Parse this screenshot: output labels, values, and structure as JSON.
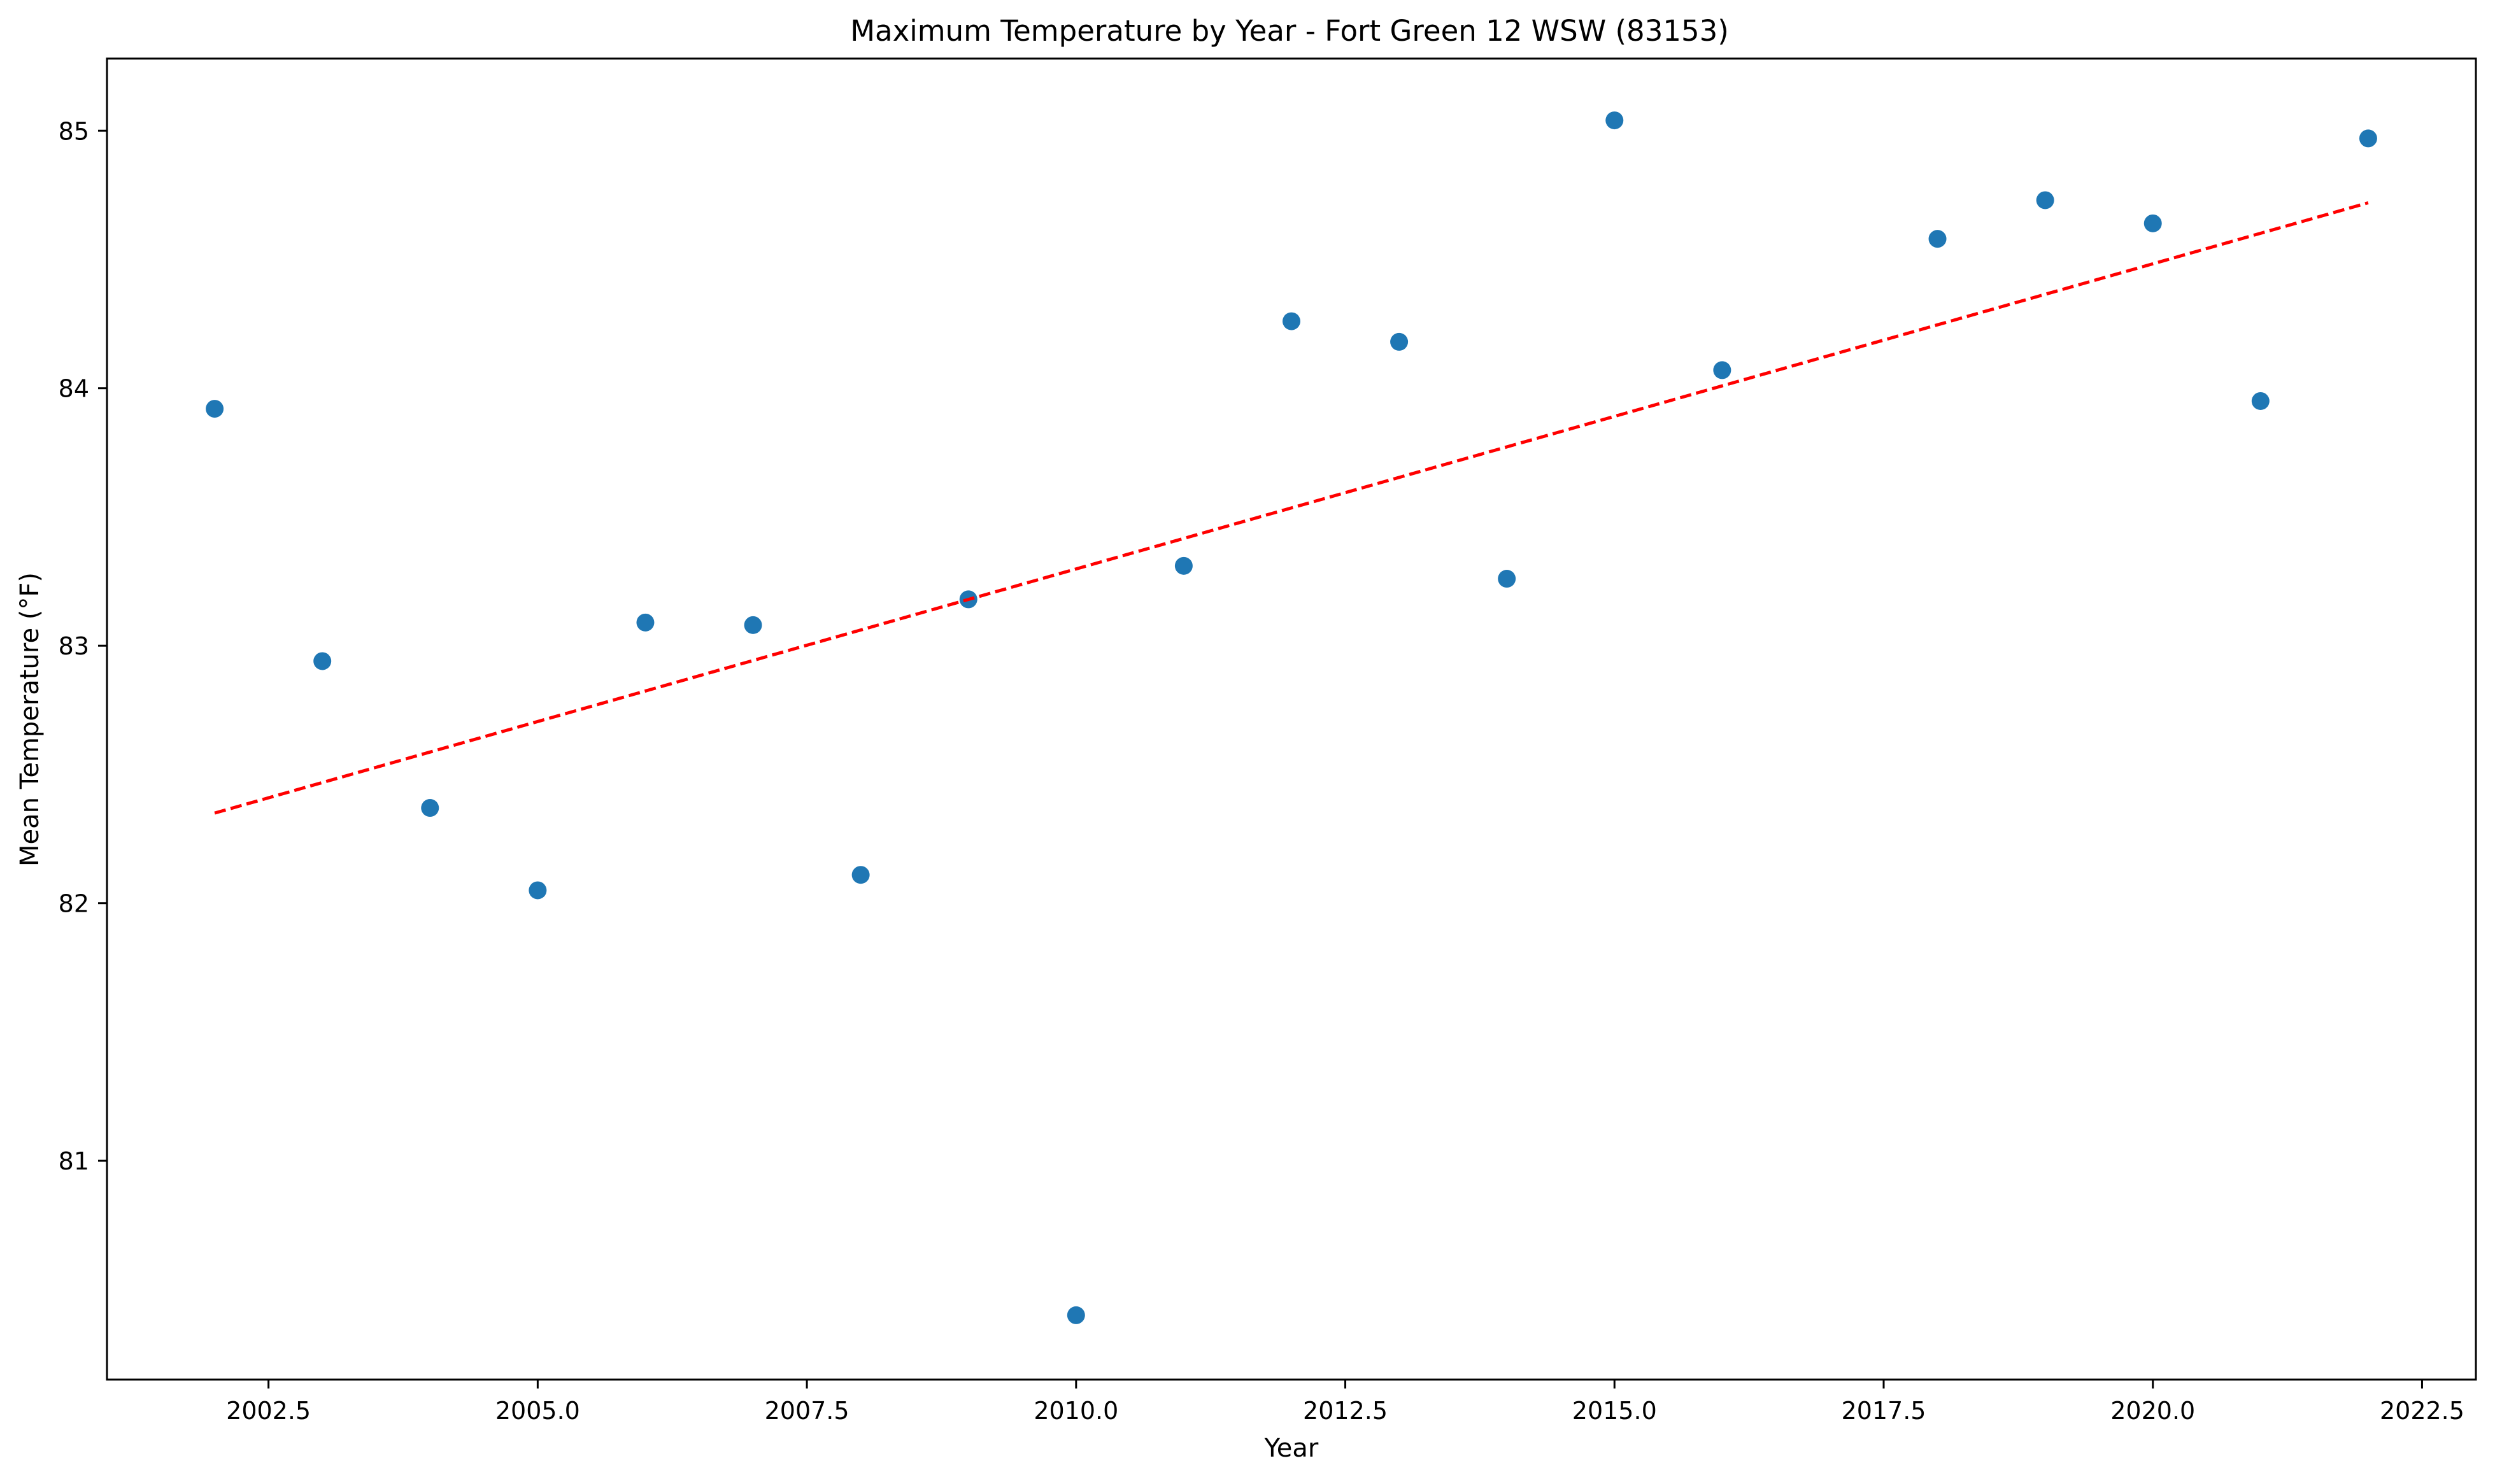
{
  "chart_data": {
    "type": "scatter",
    "title": "Maximum Temperature by Year - Fort Green 12 WSW (83153)",
    "xlabel": "Year",
    "ylabel": "Mean Temperature (°F)",
    "xlim": [
      2001.0,
      2023.0
    ],
    "ylim": [
      80.15,
      85.28
    ],
    "xticks": [
      2002.5,
      2005.0,
      2007.5,
      2010.0,
      2012.5,
      2015.0,
      2017.5,
      2020.0,
      2022.5
    ],
    "xtick_labels": [
      "2002.5",
      "2005.0",
      "2007.5",
      "2010.0",
      "2012.5",
      "2015.0",
      "2017.5",
      "2020.0",
      "2022.5"
    ],
    "yticks": [
      81,
      82,
      83,
      84,
      85
    ],
    "ytick_labels": [
      "81",
      "82",
      "83",
      "84",
      "85"
    ],
    "grid": false,
    "series": [
      {
        "kind": "scatter",
        "color": "#1f77b4",
        "x": [
          2002,
          2003,
          2004,
          2005,
          2006,
          2007,
          2008,
          2009,
          2010,
          2011,
          2012,
          2013,
          2014,
          2015,
          2016,
          2018,
          2019,
          2020,
          2021,
          2022
        ],
        "y": [
          83.92,
          82.94,
          82.37,
          82.05,
          83.09,
          83.08,
          82.11,
          83.18,
          80.4,
          83.31,
          84.26,
          84.18,
          83.26,
          85.04,
          84.07,
          84.58,
          84.73,
          84.64,
          83.95,
          84.97
        ]
      },
      {
        "kind": "line",
        "style": "dashed",
        "color": "#ff0000",
        "x": [
          2002,
          2022
        ],
        "y": [
          82.35,
          84.72
        ]
      }
    ]
  }
}
